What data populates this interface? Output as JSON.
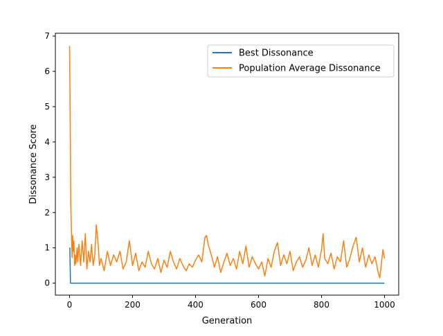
{
  "chart_data": {
    "type": "line",
    "title": "",
    "xlabel": "Generation",
    "ylabel": "Dissonance Score",
    "xlim": [
      -45,
      1045
    ],
    "ylim": [
      -0.34,
      7.08
    ],
    "xticks": [
      0,
      200,
      400,
      600,
      800,
      1000
    ],
    "yticks": [
      0,
      1,
      2,
      3,
      4,
      5,
      6,
      7
    ],
    "legend_position": "top-right",
    "grid": false,
    "series": [
      {
        "name": "Best Dissonance",
        "color": "#1f77b4",
        "x": [
          0,
          1,
          3,
          1000
        ],
        "y": [
          1.0,
          1.0,
          0.0,
          0.0
        ]
      },
      {
        "name": "Population Average Dissonance",
        "color": "#ff7f0e",
        "x": [
          0,
          2,
          4,
          6,
          8,
          10,
          12,
          14,
          16,
          18,
          20,
          22,
          24,
          26,
          28,
          30,
          35,
          40,
          45,
          50,
          55,
          60,
          65,
          70,
          75,
          80,
          85,
          90,
          95,
          100,
          110,
          120,
          130,
          140,
          150,
          160,
          170,
          180,
          190,
          200,
          210,
          220,
          230,
          240,
          250,
          260,
          270,
          280,
          290,
          300,
          310,
          320,
          330,
          340,
          350,
          360,
          370,
          380,
          390,
          400,
          410,
          420,
          430,
          435,
          440,
          450,
          460,
          470,
          480,
          490,
          500,
          510,
          520,
          530,
          540,
          550,
          560,
          570,
          580,
          590,
          600,
          610,
          620,
          630,
          640,
          650,
          660,
          670,
          680,
          690,
          700,
          710,
          720,
          730,
          740,
          750,
          760,
          770,
          780,
          790,
          800,
          805,
          810,
          820,
          830,
          840,
          850,
          860,
          870,
          880,
          890,
          900,
          910,
          920,
          930,
          940,
          950,
          960,
          970,
          980,
          985,
          990,
          995,
          1000
        ],
        "y": [
          6.72,
          4.8,
          2.2,
          1.5,
          0.72,
          1.35,
          0.9,
          1.2,
          0.5,
          0.8,
          0.55,
          0.75,
          1.0,
          0.6,
          0.9,
          1.1,
          0.5,
          1.2,
          0.6,
          1.4,
          0.4,
          0.9,
          0.6,
          1.1,
          0.5,
          0.8,
          1.65,
          1.2,
          0.5,
          0.7,
          0.35,
          0.9,
          0.5,
          0.8,
          0.6,
          0.9,
          0.4,
          0.6,
          1.2,
          0.5,
          0.85,
          0.35,
          0.6,
          0.45,
          0.9,
          0.55,
          0.4,
          0.7,
          0.3,
          0.65,
          0.45,
          0.9,
          0.6,
          0.4,
          0.7,
          0.5,
          0.35,
          0.55,
          0.45,
          0.65,
          0.8,
          0.6,
          1.3,
          1.35,
          1.1,
          0.8,
          0.45,
          0.75,
          0.3,
          0.6,
          0.85,
          0.5,
          0.7,
          0.4,
          0.9,
          0.55,
          1.05,
          0.45,
          0.75,
          0.55,
          0.4,
          0.6,
          0.2,
          0.7,
          0.45,
          0.9,
          1.15,
          0.5,
          0.8,
          0.55,
          0.9,
          0.35,
          0.6,
          0.75,
          0.45,
          0.65,
          1.0,
          0.5,
          0.8,
          0.45,
          0.95,
          1.4,
          0.7,
          0.55,
          0.85,
          0.4,
          0.75,
          0.6,
          1.2,
          0.45,
          0.7,
          1.05,
          1.3,
          0.6,
          1.0,
          0.45,
          0.8,
          0.55,
          0.75,
          0.3,
          0.15,
          0.55,
          0.95,
          0.7
        ]
      }
    ]
  }
}
